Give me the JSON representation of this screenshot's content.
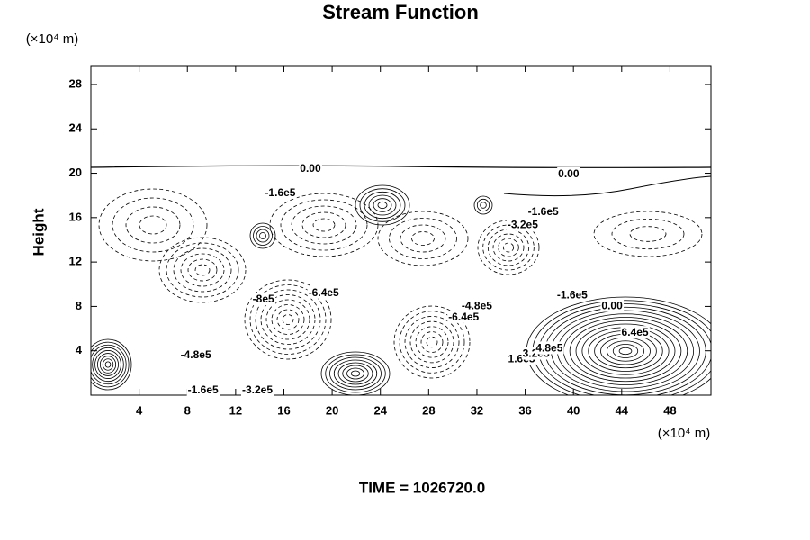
{
  "chart_data": {
    "type": "contour",
    "title": "Stream Function",
    "ylabel": "Height",
    "y_unit": "(×10⁴ m)",
    "x_unit": "(×10⁴ m)",
    "footer": "TIME = 1026720.0",
    "xlim": [
      0,
      51.4
    ],
    "ylim": [
      0,
      29.7
    ],
    "xticks": [
      4,
      8,
      12,
      16,
      20,
      24,
      28,
      32,
      36,
      40,
      44,
      48
    ],
    "yticks": [
      4,
      8,
      12,
      16,
      20,
      24,
      28
    ],
    "annotations": [
      {
        "text": "0.00",
        "x": 18.2,
        "y": 20.4
      },
      {
        "text": "0.00",
        "x": 39.6,
        "y": 19.9
      },
      {
        "text": "-1.6e5",
        "x": 15.7,
        "y": 18.2
      },
      {
        "text": "-1.6e5",
        "x": 37.5,
        "y": 16.5
      },
      {
        "text": "-3.2e5",
        "x": 35.8,
        "y": 15.3
      },
      {
        "text": "-1.6e5",
        "x": 39.9,
        "y": 9.0
      },
      {
        "text": "0.00",
        "x": 43.2,
        "y": 8.0
      },
      {
        "text": "-6.4e5",
        "x": 19.3,
        "y": 9.2
      },
      {
        "text": "-8e5",
        "x": 14.3,
        "y": 8.6
      },
      {
        "text": "-4.8e5",
        "x": 32.0,
        "y": 8.0
      },
      {
        "text": "-6.4e5",
        "x": 30.9,
        "y": 7.0
      },
      {
        "text": "6.4e5",
        "x": 45.1,
        "y": 5.6
      },
      {
        "text": "-4.8e5",
        "x": 8.7,
        "y": 3.6
      },
      {
        "text": "-1.6e5",
        "x": 9.3,
        "y": 0.4
      },
      {
        "text": "-3.2e5",
        "x": 13.8,
        "y": 0.4
      },
      {
        "text": "1.6e5",
        "x": 35.7,
        "y": 3.2
      },
      {
        "text": "3.2e5",
        "x": 36.9,
        "y": 3.7
      },
      {
        "text": "4.8e5",
        "x": 38.0,
        "y": 4.2
      }
    ]
  }
}
